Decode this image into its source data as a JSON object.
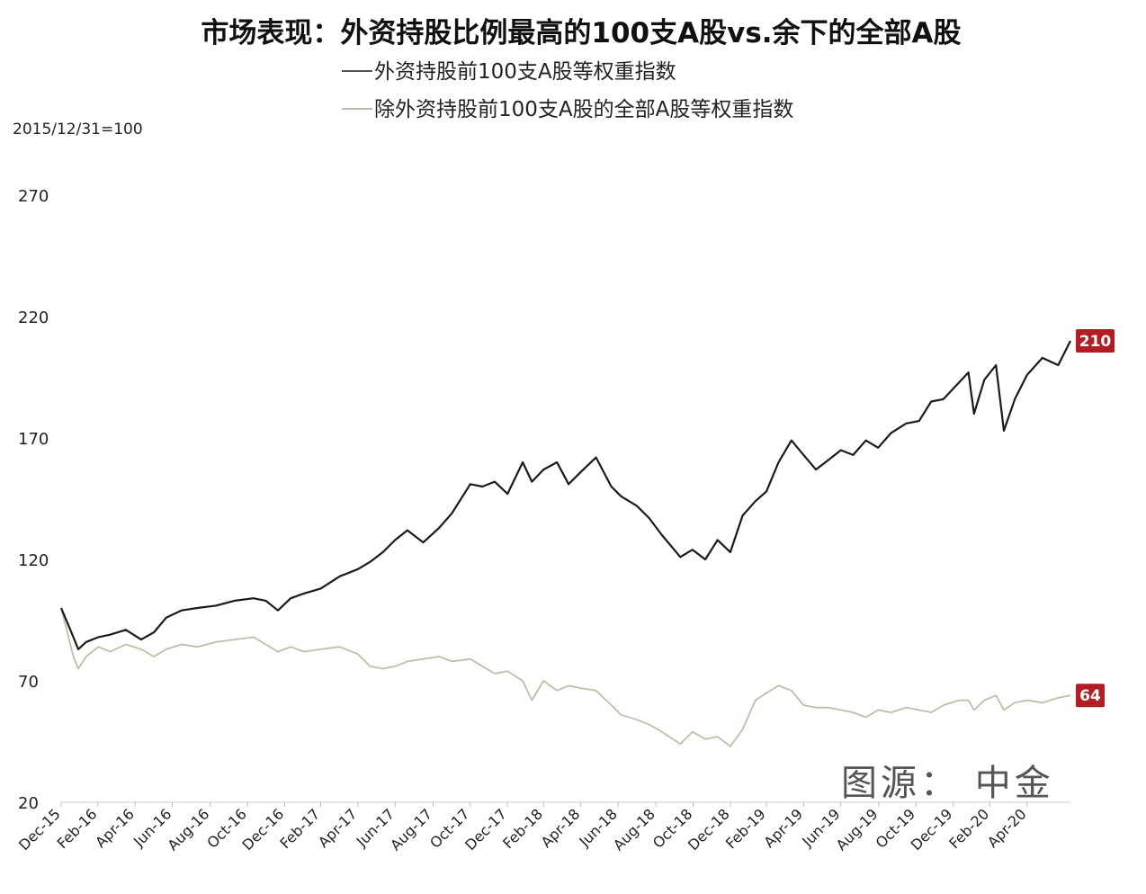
{
  "chart_data": {
    "type": "line",
    "title": "市场表现：外资持股比例最高的100支A股vs.余下的全部A股",
    "ylabel": "2015/12/31=100",
    "ylim": [
      20,
      280
    ],
    "yticks": [
      20,
      70,
      120,
      170,
      220,
      270
    ],
    "xticks": [
      "Dec-15",
      "Feb-16",
      "Apr-16",
      "Jun-16",
      "Aug-16",
      "Oct-16",
      "Dec-16",
      "Feb-17",
      "Apr-17",
      "Jun-17",
      "Aug-17",
      "Oct-17",
      "Dec-17",
      "Feb-18",
      "Apr-18",
      "Jun-18",
      "Aug-18",
      "Oct-18",
      "Dec-18",
      "Feb-19",
      "Apr-19",
      "Jun-19",
      "Aug-19",
      "Oct-19",
      "Dec-19",
      "Feb-20",
      "Apr-20"
    ],
    "xlim": [
      "2015-12-31",
      "2020-07-10"
    ],
    "legend_position": "top",
    "grid": false,
    "source": "图源： 中金",
    "series": [
      {
        "name": "外资持股前100支A股等权重指数",
        "color": "#1a1a1a",
        "end_label": "210",
        "x": [
          "2015-12-31",
          "2016-01-10",
          "2016-01-20",
          "2016-01-28",
          "2016-02-10",
          "2016-03-01",
          "2016-03-20",
          "2016-04-15",
          "2016-05-10",
          "2016-05-31",
          "2016-06-20",
          "2016-07-15",
          "2016-08-10",
          "2016-09-10",
          "2016-10-10",
          "2016-11-10",
          "2016-11-30",
          "2016-12-20",
          "2017-01-10",
          "2017-02-01",
          "2017-02-28",
          "2017-03-31",
          "2017-04-30",
          "2017-05-20",
          "2017-06-10",
          "2017-06-30",
          "2017-07-20",
          "2017-08-15",
          "2017-09-10",
          "2017-10-01",
          "2017-10-31",
          "2017-11-20",
          "2017-12-10",
          "2017-12-31",
          "2018-01-25",
          "2018-02-09",
          "2018-02-28",
          "2018-03-22",
          "2018-04-10",
          "2018-04-30",
          "2018-05-25",
          "2018-06-19",
          "2018-07-05",
          "2018-07-31",
          "2018-08-20",
          "2018-09-10",
          "2018-10-10",
          "2018-10-30",
          "2018-11-20",
          "2018-12-10",
          "2018-12-31",
          "2019-01-20",
          "2019-02-10",
          "2019-02-28",
          "2019-03-20",
          "2019-04-10",
          "2019-04-30",
          "2019-05-20",
          "2019-06-10",
          "2019-06-30",
          "2019-07-20",
          "2019-08-10",
          "2019-08-30",
          "2019-09-20",
          "2019-10-15",
          "2019-11-05",
          "2019-11-25",
          "2019-12-15",
          "2020-01-10",
          "2020-01-25",
          "2020-02-03",
          "2020-02-20",
          "2020-03-10",
          "2020-03-23",
          "2020-04-10",
          "2020-04-30",
          "2020-05-25",
          "2020-06-20",
          "2020-07-10"
        ],
        "values": [
          100,
          94,
          88,
          83,
          86,
          88,
          89,
          91,
          87,
          90,
          96,
          99,
          100,
          101,
          103,
          104,
          103,
          99,
          104,
          106,
          108,
          113,
          116,
          119,
          123,
          128,
          132,
          127,
          133,
          139,
          151,
          150,
          152,
          147,
          160,
          152,
          157,
          160,
          151,
          156,
          162,
          150,
          146,
          142,
          137,
          130,
          121,
          124,
          120,
          128,
          123,
          138,
          144,
          148,
          160,
          169,
          163,
          157,
          161,
          165,
          163,
          169,
          166,
          172,
          176,
          177,
          185,
          186,
          193,
          197,
          180,
          194,
          200,
          173,
          186,
          196,
          203,
          200,
          210
        ]
      },
      {
        "name": "除外资持股前100支A股的全部A股等权重指数",
        "color": "#c2bda5",
        "end_label": "64",
        "x": [
          "2015-12-31",
          "2016-01-10",
          "2016-01-20",
          "2016-01-28",
          "2016-02-10",
          "2016-03-01",
          "2016-03-20",
          "2016-04-15",
          "2016-05-10",
          "2016-05-31",
          "2016-06-20",
          "2016-07-15",
          "2016-08-10",
          "2016-09-10",
          "2016-10-10",
          "2016-11-10",
          "2016-11-30",
          "2016-12-20",
          "2017-01-10",
          "2017-02-01",
          "2017-02-28",
          "2017-03-31",
          "2017-04-30",
          "2017-05-20",
          "2017-06-10",
          "2017-06-30",
          "2017-07-20",
          "2017-08-15",
          "2017-09-10",
          "2017-10-01",
          "2017-10-31",
          "2017-11-20",
          "2017-12-10",
          "2017-12-31",
          "2018-01-25",
          "2018-02-09",
          "2018-02-28",
          "2018-03-22",
          "2018-04-10",
          "2018-04-30",
          "2018-05-25",
          "2018-06-19",
          "2018-07-05",
          "2018-07-31",
          "2018-08-20",
          "2018-09-10",
          "2018-10-10",
          "2018-10-30",
          "2018-11-20",
          "2018-12-10",
          "2018-12-31",
          "2019-01-20",
          "2019-02-10",
          "2019-02-28",
          "2019-03-20",
          "2019-04-10",
          "2019-04-30",
          "2019-05-20",
          "2019-06-10",
          "2019-06-30",
          "2019-07-20",
          "2019-08-10",
          "2019-08-30",
          "2019-09-20",
          "2019-10-15",
          "2019-11-05",
          "2019-11-25",
          "2019-12-15",
          "2020-01-10",
          "2020-01-25",
          "2020-02-03",
          "2020-02-20",
          "2020-03-10",
          "2020-03-23",
          "2020-04-10",
          "2020-04-30",
          "2020-05-25",
          "2020-06-20",
          "2020-07-10"
        ],
        "values": [
          100,
          90,
          80,
          75,
          80,
          84,
          82,
          85,
          83,
          80,
          83,
          85,
          84,
          86,
          87,
          88,
          85,
          82,
          84,
          82,
          83,
          84,
          81,
          76,
          75,
          76,
          78,
          79,
          80,
          78,
          79,
          76,
          73,
          74,
          70,
          62,
          70,
          66,
          68,
          67,
          66,
          60,
          56,
          54,
          52,
          49,
          44,
          49,
          46,
          47,
          43,
          50,
          62,
          65,
          68,
          66,
          60,
          59,
          59,
          58,
          57,
          55,
          58,
          57,
          59,
          58,
          57,
          60,
          62,
          62,
          58,
          62,
          64,
          58,
          61,
          62,
          61,
          63,
          64
        ]
      }
    ]
  }
}
